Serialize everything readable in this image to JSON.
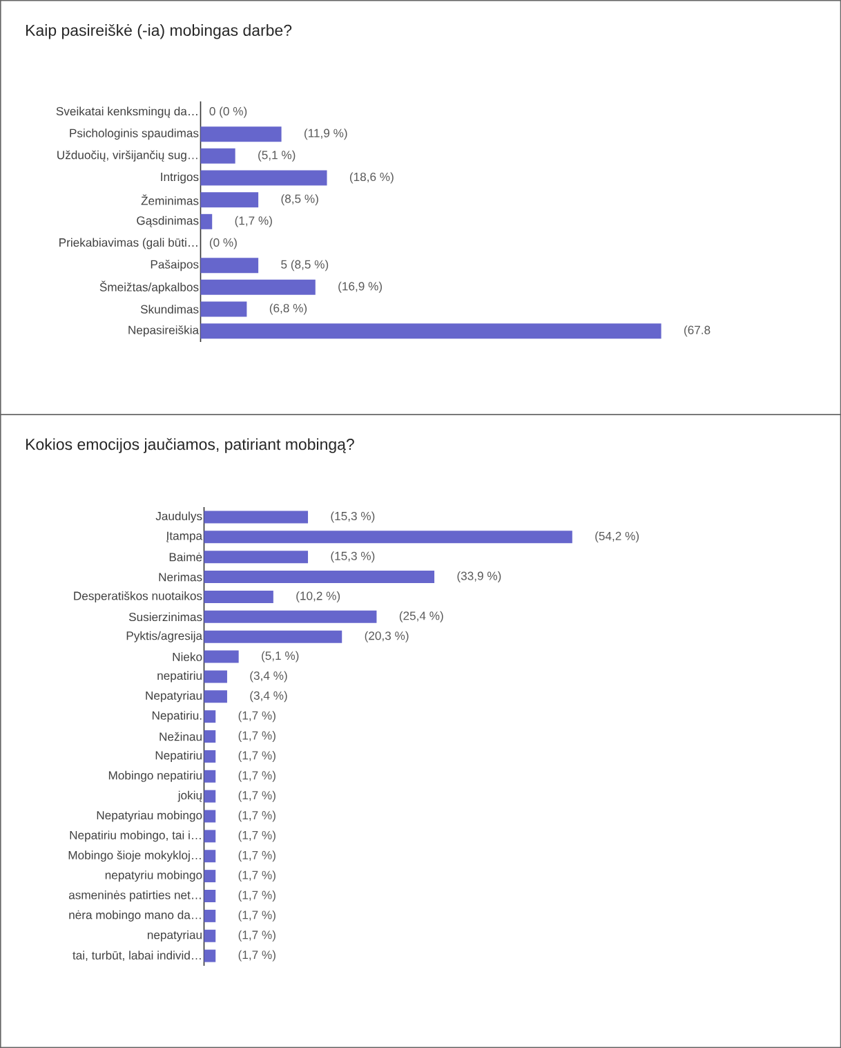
{
  "chart_data": [
    {
      "type": "bar",
      "orientation": "horizontal",
      "title": "Kaip pasireiškė (-ia) mobingas darbe?",
      "color": "#6666cc",
      "categories": [
        "Sveikatai kenksmingų da…",
        "Psichologinis spaudimas",
        "Užduočių, viršijančių sug…",
        "Intrigos",
        "Žeminimas",
        "Gąsdinimas",
        "Priekabiavimas (gali būti…",
        "Pašaipos",
        "Šmeižtas/apkalbos",
        "Skundimas",
        "Nepasireiškia"
      ],
      "values": [
        0,
        11.9,
        5.1,
        18.6,
        8.5,
        1.7,
        0,
        8.5,
        16.9,
        6.8,
        67.8
      ],
      "value_labels": [
        "0 (0 %)",
        "(11,9 %)",
        "(5,1 %)",
        "(18,6 %)",
        "(8,5 %)",
        "(1,7 %)",
        "(0 %)",
        "5 (8,5 %)",
        "(16,9 %)",
        "(6,8 %)",
        "(67.8"
      ]
    },
    {
      "type": "bar",
      "orientation": "horizontal",
      "title": "Kokios emocijos jaučiamos, patiriant mobingą?",
      "color": "#6666cc",
      "categories": [
        "Jaudulys",
        "Įtampa",
        "Baimė",
        "Nerimas",
        "Desperatiškos nuotaikos",
        "Susierzinimas",
        "Pyktis/agresija",
        "Nieko",
        "nepatiriu",
        "Nepatyriau",
        "Nepatiriu.",
        "Nežinau",
        "Nepatiriu",
        "Mobingo nepatiriu",
        "jokių",
        "Nepatyriau mobingo",
        "Nepatiriu mobingo, tai i…",
        "Mobingo šioje mokykloj…",
        "nepatyriu mobingo",
        "asmeninės patirties net…",
        "nėra mobingo mano da…",
        "nepatyriau",
        "tai, turbūt, labai individ…"
      ],
      "values": [
        15.3,
        54.2,
        15.3,
        33.9,
        10.2,
        25.4,
        20.3,
        5.1,
        3.4,
        3.4,
        1.7,
        1.7,
        1.7,
        1.7,
        1.7,
        1.7,
        1.7,
        1.7,
        1.7,
        1.7,
        1.7,
        1.7,
        1.7
      ],
      "value_labels": [
        "(15,3 %)",
        "(54,2 %)",
        "(15,3 %)",
        "(33,9 %)",
        "(10,2 %)",
        "(25,4 %)",
        "(20,3 %)",
        "(5,1 %)",
        "(3,4 %)",
        "(3,4 %)",
        "(1,7 %)",
        "(1,7 %)",
        "(1,7 %)",
        "(1,7 %)",
        "(1,7 %)",
        "(1,7 %)",
        "(1,7 %)",
        "(1,7 %)",
        "(1,7 %)",
        "(1,7 %)",
        "(1,7 %)",
        "(1,7 %)",
        "(1,7 %)"
      ]
    }
  ]
}
